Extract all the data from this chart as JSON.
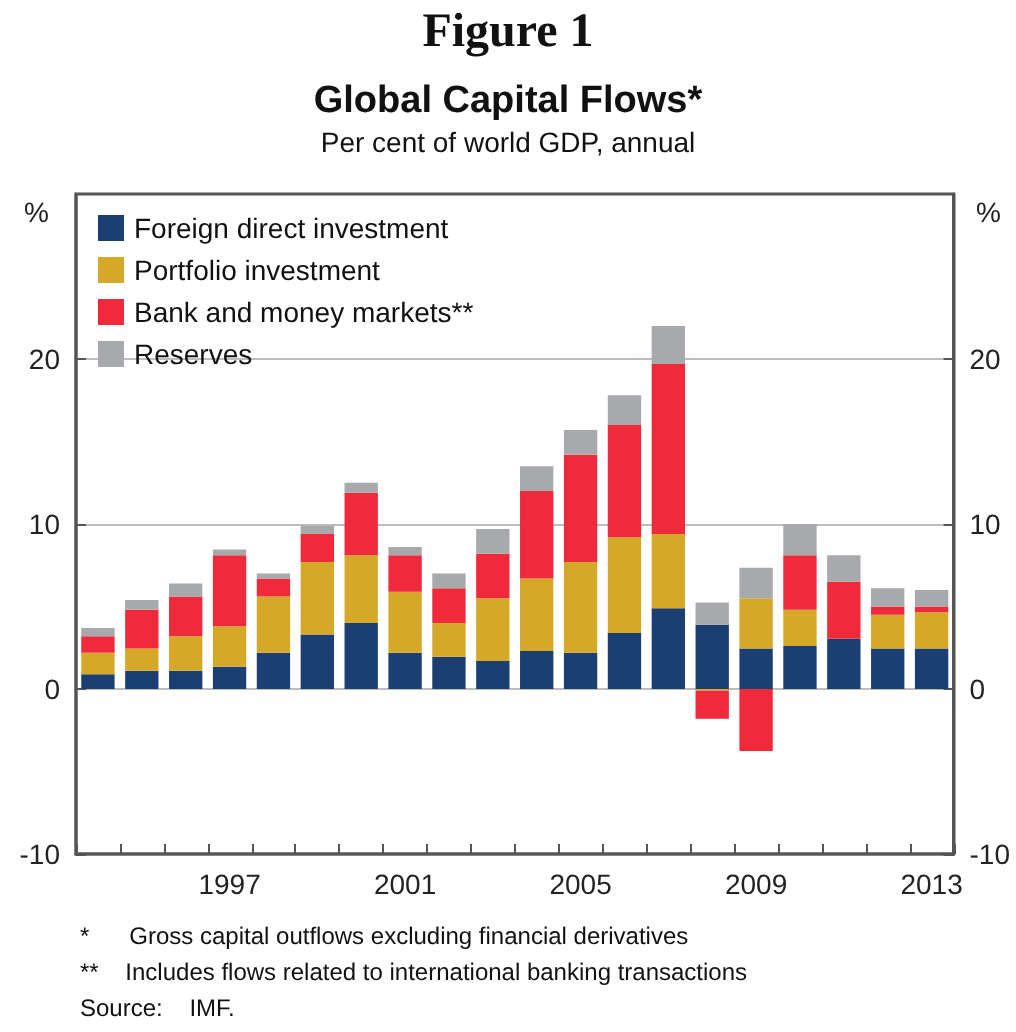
{
  "chart_data": {
    "type": "bar",
    "stacked": true,
    "title": "Global Capital Flows*",
    "subtitle": "Per cent of world GDP, annual",
    "ylabel": "%",
    "y2label": "%",
    "categories": [
      null,
      null,
      null,
      "1997",
      null,
      null,
      null,
      "2001",
      null,
      null,
      null,
      "2005",
      null,
      null,
      null,
      "2009",
      null,
      null,
      null,
      "2013"
    ],
    "series": [
      {
        "name": "Foreign direct investment",
        "color": "#1b3f73",
        "values": [
          0.9,
          1.1,
          1.1,
          1.35,
          2.2,
          3.3,
          4.0,
          2.2,
          1.95,
          1.7,
          2.3,
          2.2,
          3.4,
          4.9,
          3.9,
          2.45,
          2.6,
          3.05,
          2.45,
          2.45
        ]
      },
      {
        "name": "Portfolio investment",
        "color": "#d6a82a",
        "values": [
          1.3,
          1.35,
          2.1,
          2.45,
          3.4,
          4.4,
          4.1,
          3.7,
          2.05,
          3.8,
          4.4,
          5.5,
          5.8,
          4.5,
          -0.1,
          3.05,
          2.2,
          0,
          2.05,
          2.2
        ]
      },
      {
        "name": "Bank and money markets**",
        "color": "#ee2a3b",
        "values": [
          1.0,
          2.35,
          2.4,
          4.3,
          1.1,
          1.7,
          3.8,
          2.2,
          2.1,
          2.7,
          5.3,
          6.5,
          6.8,
          10.3,
          -1.7,
          -3.75,
          3.3,
          3.45,
          0.5,
          0.35
        ]
      },
      {
        "name": "Reserves",
        "color": "#a7a9ac",
        "values": [
          0.5,
          0.6,
          0.8,
          0.35,
          0.3,
          0.5,
          0.6,
          0.5,
          0.9,
          1.5,
          1.5,
          1.5,
          1.8,
          2.3,
          1.35,
          1.85,
          1.9,
          1.6,
          1.1,
          1.0
        ]
      }
    ],
    "ylim": [
      -10,
      30
    ],
    "yticks": [
      -10,
      0,
      10,
      20
    ],
    "y2lim": [
      -10,
      30
    ],
    "y2ticks": [
      -10,
      0,
      10,
      20
    ],
    "grid": "y",
    "legend": "top left",
    "annotations": [
      "Figure 1",
      "*      Gross capital outflows excluding financial derivatives",
      "**    Includes flows related to international banking transactions",
      "Source:    IMF."
    ]
  }
}
